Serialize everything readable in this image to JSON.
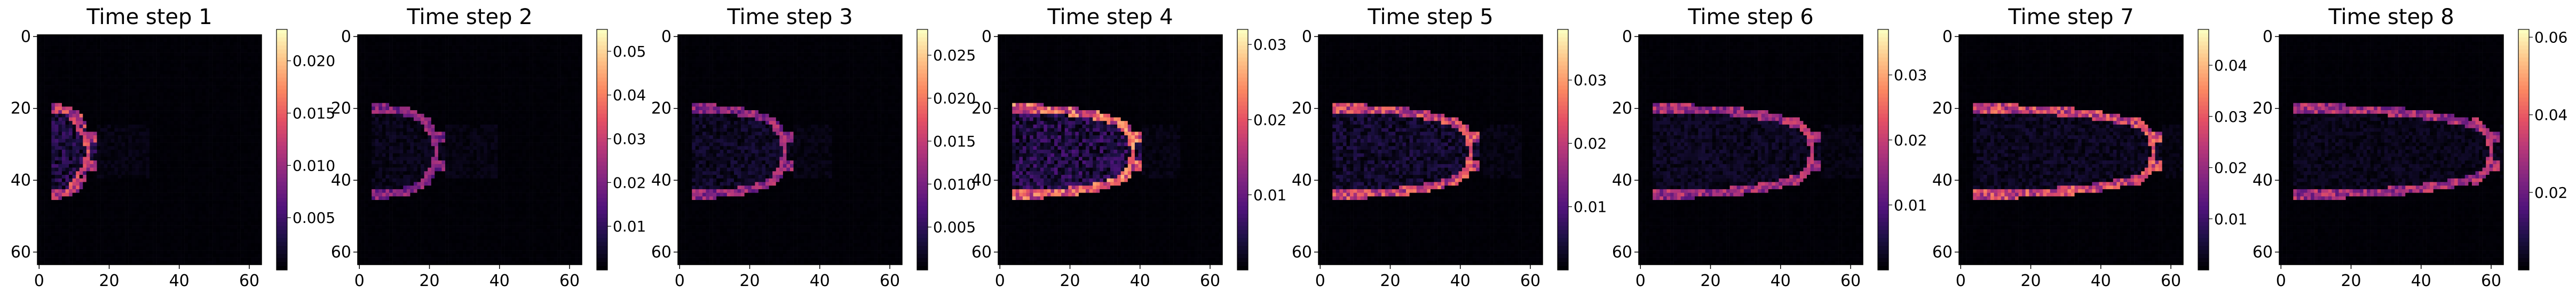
{
  "chart_data": {
    "type": "heatmap",
    "colormap": "magma",
    "panels": [
      {
        "title": "Time step 1",
        "vmax": 0.023,
        "cbar_ticks": [
          0.005,
          0.01,
          0.015,
          0.02
        ],
        "cbar_tick_labels": [
          "0.005",
          "0.010",
          "0.015",
          "0.020"
        ],
        "front_x": 14,
        "front_x_end": 24,
        "front_amp": 0.7,
        "interior_amp": 0.22
      },
      {
        "title": "Time step 2",
        "vmax": 0.055,
        "cbar_ticks": [
          0.01,
          0.02,
          0.03,
          0.04,
          0.05
        ],
        "cbar_tick_labels": [
          "0.01",
          "0.02",
          "0.03",
          "0.04",
          "0.05"
        ],
        "front_x": 22,
        "front_x_end": 32,
        "front_amp": 0.5,
        "interior_amp": 0.08
      },
      {
        "title": "Time step 3",
        "vmax": 0.028,
        "cbar_ticks": [
          0.005,
          0.01,
          0.015,
          0.02,
          0.025
        ],
        "cbar_tick_labels": [
          "0.005",
          "0.010",
          "0.015",
          "0.020",
          "0.025"
        ],
        "front_x": 30,
        "front_x_end": 36,
        "front_amp": 0.55,
        "interior_amp": 0.12
      },
      {
        "title": "Time step 4",
        "vmax": 0.032,
        "cbar_ticks": [
          0.01,
          0.02,
          0.03
        ],
        "cbar_tick_labels": [
          "0.01",
          "0.02",
          "0.03"
        ],
        "front_x": 38,
        "front_x_end": 44,
        "front_amp": 0.85,
        "interior_amp": 0.25
      },
      {
        "title": "Time step 5",
        "vmax": 0.038,
        "cbar_ticks": [
          0.01,
          0.02,
          0.03
        ],
        "cbar_tick_labels": [
          "0.01",
          "0.02",
          "0.03"
        ],
        "front_x": 43,
        "front_x_end": 50,
        "front_amp": 0.75,
        "interior_amp": 0.15
      },
      {
        "title": "Time step 6",
        "vmax": 0.037,
        "cbar_ticks": [
          0.01,
          0.02,
          0.03
        ],
        "cbar_tick_labels": [
          "0.01",
          "0.02",
          "0.03"
        ],
        "front_x": 49,
        "front_x_end": 56,
        "front_amp": 0.6,
        "interior_amp": 0.1
      },
      {
        "title": "Time step 7",
        "vmax": 0.047,
        "cbar_ticks": [
          0.01,
          0.02,
          0.03,
          0.04
        ],
        "cbar_tick_labels": [
          "0.01",
          "0.02",
          "0.03",
          "0.04"
        ],
        "front_x": 55,
        "front_x_end": 60,
        "front_amp": 0.75,
        "interior_amp": 0.1
      },
      {
        "title": "Time step 8",
        "vmax": 0.062,
        "cbar_ticks": [
          0.02,
          0.04,
          0.06
        ],
        "cbar_tick_labels": [
          "0.02",
          "0.04",
          "0.06"
        ],
        "front_x": 60,
        "front_x_end": 63,
        "front_amp": 0.6,
        "interior_amp": 0.08
      }
    ],
    "x_ticks": [
      0,
      20,
      40,
      60
    ],
    "x_tick_labels": [
      "0",
      "20",
      "40",
      "60"
    ],
    "y_ticks": [
      0,
      20,
      40,
      60
    ],
    "y_tick_labels": [
      "0",
      "20",
      "40",
      "60"
    ],
    "grid_size": 64,
    "y_origin": "top"
  }
}
